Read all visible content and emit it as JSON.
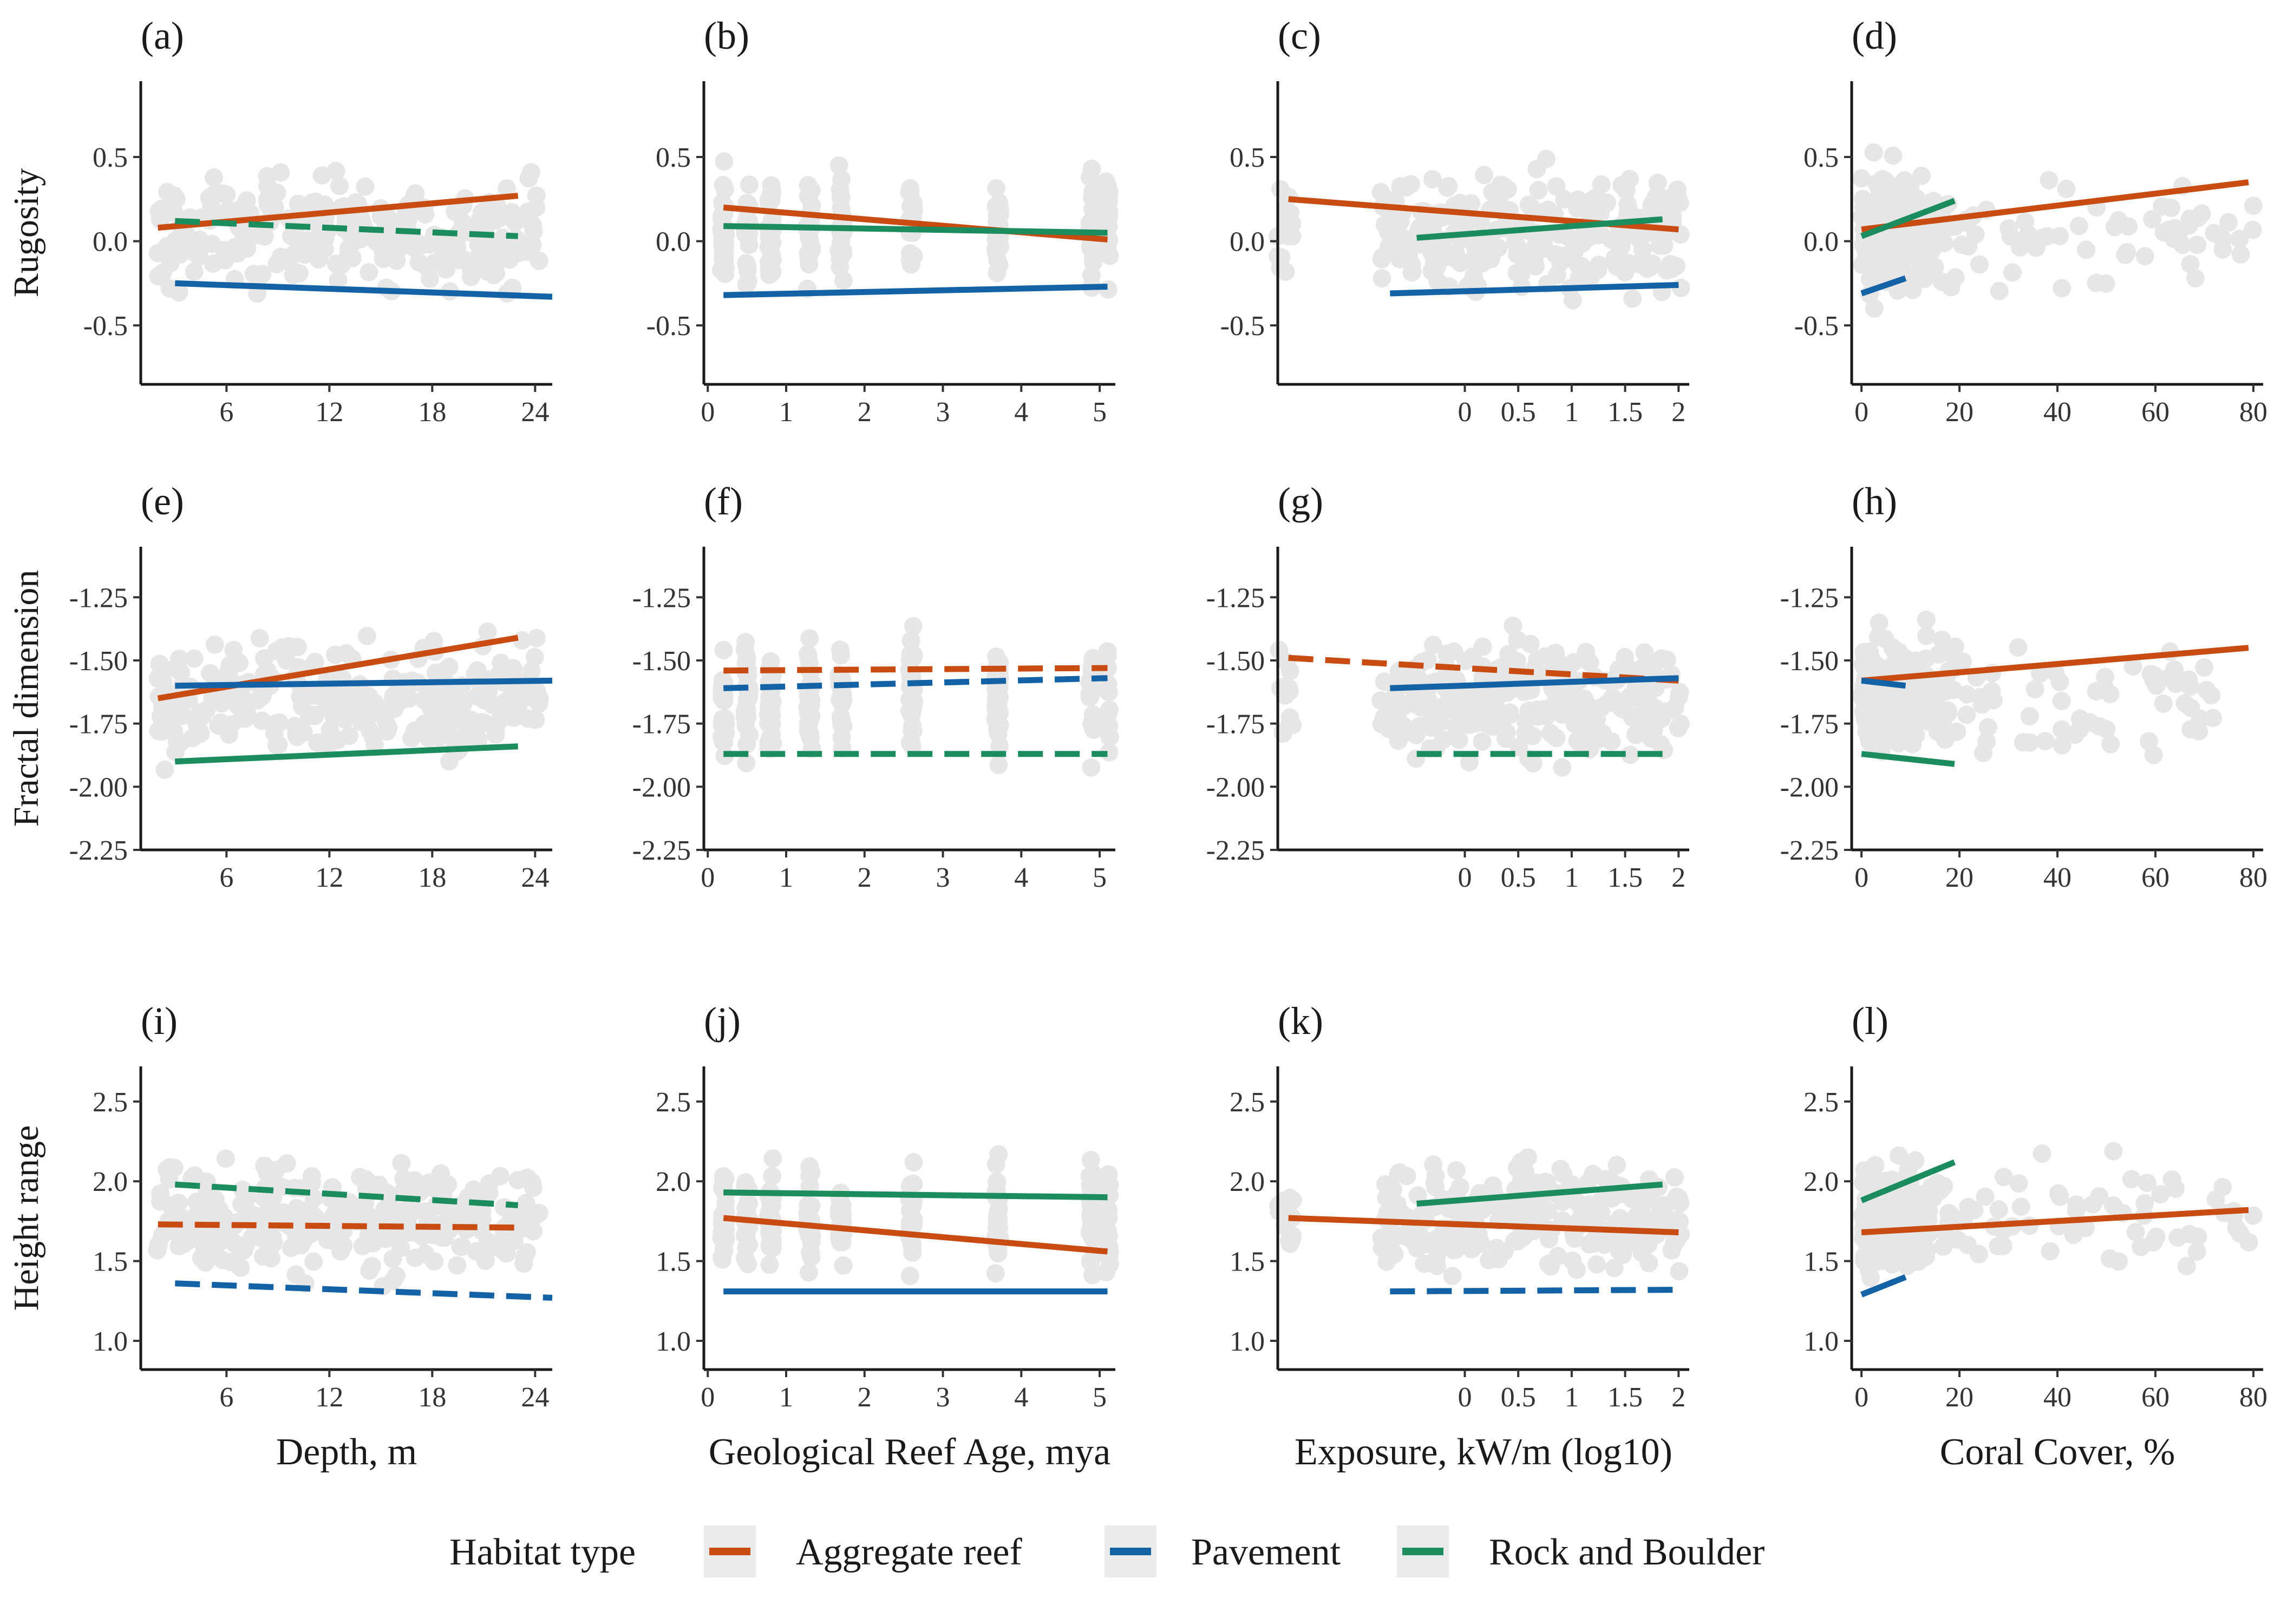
{
  "colors": {
    "Aggregate reef": "#C84B12",
    "Pavement": "#1462A6",
    "Rock and Boulder": "#1B8C5E",
    "points": "#C8C8C8"
  },
  "legend": {
    "title": "Habitat type",
    "entries": [
      "Aggregate reef",
      "Pavement",
      "Rock and Boulder"
    ],
    "position": "bottom"
  },
  "row_ylabels": [
    "Rugosity",
    "Fractal dimension",
    "Height range"
  ],
  "col_xlabels": [
    "Depth, m",
    "Geological Reef Age, mya",
    "Exposure, kW/m (log10)",
    "Coral Cover, %"
  ],
  "chart_data": [
    {
      "panel": "(a)",
      "type": "scatter",
      "xlabel": "",
      "ylabel": "Rugosity",
      "xlim": [
        1,
        25
      ],
      "xticks": [
        6,
        12,
        18,
        24
      ],
      "ylim": [
        -0.85,
        0.95
      ],
      "yticks": [
        0.5,
        0,
        -0.5
      ],
      "yticklabels": [
        "0.5",
        "0.0",
        "-0.5"
      ],
      "series": [
        {
          "name": "Aggregate reef",
          "x": [
            2,
            23
          ],
          "y": [
            0.08,
            0.27
          ],
          "dashed": false
        },
        {
          "name": "Pavement",
          "x": [
            3,
            25
          ],
          "y": [
            -0.25,
            -0.33
          ],
          "dashed": false
        },
        {
          "name": "Rock and Boulder",
          "x": [
            3,
            23
          ],
          "y": [
            0.12,
            0.03
          ],
          "dashed": true
        }
      ]
    },
    {
      "panel": "(b)",
      "type": "scatter",
      "xlabel": "",
      "ylabel": "",
      "xlim": [
        -0.05,
        5.2
      ],
      "xticks": [
        0,
        1,
        2,
        3,
        4,
        5
      ],
      "ylim": [
        -0.85,
        0.95
      ],
      "yticks": [
        0.5,
        0,
        -0.5
      ],
      "yticklabels": [
        "0.5",
        "0.0",
        "-0.5"
      ],
      "series": [
        {
          "name": "Aggregate reef",
          "x": [
            0.2,
            5.1
          ],
          "y": [
            0.2,
            0.01
          ],
          "dashed": false
        },
        {
          "name": "Pavement",
          "x": [
            0.2,
            5.1
          ],
          "y": [
            -0.32,
            -0.27
          ],
          "dashed": false
        },
        {
          "name": "Rock and Boulder",
          "x": [
            0.2,
            5.1
          ],
          "y": [
            0.09,
            0.05
          ],
          "dashed": false
        }
      ]
    },
    {
      "panel": "(c)",
      "type": "scatter",
      "xlabel": "",
      "ylabel": "",
      "xlim": [
        -1.75,
        2.1
      ],
      "xticks": [
        0,
        0.5,
        1,
        1.5,
        2
      ],
      "xticklabels": [
        "0",
        "0.5",
        "1",
        "1.5",
        "2"
      ],
      "ylim": [
        -0.85,
        0.95
      ],
      "yticks": [
        0.5,
        0,
        -0.5
      ],
      "yticklabels": [
        "0.5",
        "0.0",
        "-0.5"
      ],
      "series": [
        {
          "name": "Aggregate reef",
          "x": [
            -1.65,
            2
          ],
          "y": [
            0.25,
            0.07
          ],
          "dashed": false
        },
        {
          "name": "Pavement",
          "x": [
            -0.7,
            2
          ],
          "y": [
            -0.31,
            -0.26
          ],
          "dashed": false
        },
        {
          "name": "Rock and Boulder",
          "x": [
            -0.45,
            1.85
          ],
          "y": [
            0.02,
            0.13
          ],
          "dashed": false
        }
      ]
    },
    {
      "panel": "(d)",
      "type": "scatter",
      "xlabel": "",
      "ylabel": "",
      "xlim": [
        -2,
        82
      ],
      "xticks": [
        0,
        20,
        40,
        60,
        80
      ],
      "ylim": [
        -0.85,
        0.95
      ],
      "yticks": [
        0.5,
        0,
        -0.5
      ],
      "yticklabels": [
        "0.5",
        "0.0",
        "-0.5"
      ],
      "series": [
        {
          "name": "Aggregate reef",
          "x": [
            0,
            79
          ],
          "y": [
            0.07,
            0.35
          ],
          "dashed": false
        },
        {
          "name": "Pavement",
          "x": [
            0,
            9
          ],
          "y": [
            -0.31,
            -0.22
          ],
          "dashed": false
        },
        {
          "name": "Rock and Boulder",
          "x": [
            0,
            19
          ],
          "y": [
            0.03,
            0.24
          ],
          "dashed": false
        }
      ]
    },
    {
      "panel": "(e)",
      "type": "scatter",
      "xlabel": "",
      "ylabel": "Fractal dimension",
      "xlim": [
        1,
        25
      ],
      "xticks": [
        6,
        12,
        18,
        24
      ],
      "ylim": [
        -2.25,
        -1.05
      ],
      "yticks": [
        -1.25,
        -1.5,
        -1.75,
        -2,
        -2.25
      ],
      "yticklabels": [
        "-1.25",
        "-1.50",
        "-1.75",
        "-2.00",
        "-2.25"
      ],
      "series": [
        {
          "name": "Aggregate reef",
          "x": [
            2,
            23
          ],
          "y": [
            -1.65,
            -1.41
          ],
          "dashed": false
        },
        {
          "name": "Pavement",
          "x": [
            3,
            25
          ],
          "y": [
            -1.6,
            -1.58
          ],
          "dashed": false
        },
        {
          "name": "Rock and Boulder",
          "x": [
            3,
            23
          ],
          "y": [
            -1.9,
            -1.84
          ],
          "dashed": false
        }
      ]
    },
    {
      "panel": "(f)",
      "type": "scatter",
      "xlabel": "",
      "ylabel": "",
      "xlim": [
        -0.05,
        5.2
      ],
      "xticks": [
        0,
        1,
        2,
        3,
        4,
        5
      ],
      "ylim": [
        -2.25,
        -1.05
      ],
      "yticks": [
        -1.25,
        -1.5,
        -1.75,
        -2,
        -2.25
      ],
      "yticklabels": [
        "-1.25",
        "-1.50",
        "-1.75",
        "-2.00",
        "-2.25"
      ],
      "series": [
        {
          "name": "Aggregate reef",
          "x": [
            0.2,
            5.1
          ],
          "y": [
            -1.54,
            -1.53
          ],
          "dashed": true
        },
        {
          "name": "Pavement",
          "x": [
            0.2,
            5.1
          ],
          "y": [
            -1.61,
            -1.57
          ],
          "dashed": true
        },
        {
          "name": "Rock and Boulder",
          "x": [
            0.2,
            5.1
          ],
          "y": [
            -1.87,
            -1.87
          ],
          "dashed": true
        }
      ]
    },
    {
      "panel": "(g)",
      "type": "scatter",
      "xlabel": "",
      "ylabel": "",
      "xlim": [
        -1.75,
        2.1
      ],
      "xticks": [
        0,
        0.5,
        1,
        1.5,
        2
      ],
      "xticklabels": [
        "0",
        "0.5",
        "1",
        "1.5",
        "2"
      ],
      "ylim": [
        -2.25,
        -1.05
      ],
      "yticks": [
        -1.25,
        -1.5,
        -1.75,
        -2,
        -2.25
      ],
      "yticklabels": [
        "-1.25",
        "-1.50",
        "-1.75",
        "-2.00",
        "-2.25"
      ],
      "series": [
        {
          "name": "Aggregate reef",
          "x": [
            -1.65,
            2
          ],
          "y": [
            -1.49,
            -1.58
          ],
          "dashed": true
        },
        {
          "name": "Pavement",
          "x": [
            -0.7,
            2
          ],
          "y": [
            -1.61,
            -1.57
          ],
          "dashed": false
        },
        {
          "name": "Rock and Boulder",
          "x": [
            -0.45,
            1.85
          ],
          "y": [
            -1.87,
            -1.87
          ],
          "dashed": true
        }
      ]
    },
    {
      "panel": "(h)",
      "type": "scatter",
      "xlabel": "",
      "ylabel": "",
      "xlim": [
        -2,
        82
      ],
      "xticks": [
        0,
        20,
        40,
        60,
        80
      ],
      "ylim": [
        -2.25,
        -1.05
      ],
      "yticks": [
        -1.25,
        -1.5,
        -1.75,
        -2,
        -2.25
      ],
      "yticklabels": [
        "-1.25",
        "-1.50",
        "-1.75",
        "-2.00",
        "-2.25"
      ],
      "series": [
        {
          "name": "Aggregate reef",
          "x": [
            0,
            79
          ],
          "y": [
            -1.58,
            -1.45
          ],
          "dashed": false
        },
        {
          "name": "Pavement",
          "x": [
            0,
            9
          ],
          "y": [
            -1.58,
            -1.6
          ],
          "dashed": false
        },
        {
          "name": "Rock and Boulder",
          "x": [
            0,
            19
          ],
          "y": [
            -1.87,
            -1.91
          ],
          "dashed": false
        }
      ]
    },
    {
      "panel": "(i)",
      "type": "scatter",
      "xlabel": "Depth, m",
      "ylabel": "Height range",
      "xlim": [
        1,
        25
      ],
      "xticks": [
        6,
        12,
        18,
        24
      ],
      "ylim": [
        0.82,
        2.72
      ],
      "yticks": [
        2.5,
        2,
        1.5,
        1
      ],
      "yticklabels": [
        "2.5",
        "2.0",
        "1.5",
        "1.0"
      ],
      "series": [
        {
          "name": "Aggregate reef",
          "x": [
            2,
            23
          ],
          "y": [
            1.73,
            1.71
          ],
          "dashed": true
        },
        {
          "name": "Pavement",
          "x": [
            3,
            25
          ],
          "y": [
            1.36,
            1.27
          ],
          "dashed": true
        },
        {
          "name": "Rock and Boulder",
          "x": [
            3,
            23
          ],
          "y": [
            1.98,
            1.85
          ],
          "dashed": true
        }
      ]
    },
    {
      "panel": "(j)",
      "type": "scatter",
      "xlabel": "Geological Reef Age, mya",
      "ylabel": "",
      "xlim": [
        -0.05,
        5.2
      ],
      "xticks": [
        0,
        1,
        2,
        3,
        4,
        5
      ],
      "ylim": [
        0.82,
        2.72
      ],
      "yticks": [
        2.5,
        2,
        1.5,
        1
      ],
      "yticklabels": [
        "2.5",
        "2.0",
        "1.5",
        "1.0"
      ],
      "series": [
        {
          "name": "Aggregate reef",
          "x": [
            0.2,
            5.1
          ],
          "y": [
            1.77,
            1.56
          ],
          "dashed": false
        },
        {
          "name": "Pavement",
          "x": [
            0.2,
            5.1
          ],
          "y": [
            1.31,
            1.31
          ],
          "dashed": false
        },
        {
          "name": "Rock and Boulder",
          "x": [
            0.2,
            5.1
          ],
          "y": [
            1.93,
            1.9
          ],
          "dashed": false
        }
      ]
    },
    {
      "panel": "(k)",
      "type": "scatter",
      "xlabel": "Exposure, kW/m (log10)",
      "ylabel": "",
      "xlim": [
        -1.75,
        2.1
      ],
      "xticks": [
        0,
        0.5,
        1,
        1.5,
        2
      ],
      "xticklabels": [
        "0",
        "0.5",
        "1",
        "1.5",
        "2"
      ],
      "ylim": [
        0.82,
        2.72
      ],
      "yticks": [
        2.5,
        2,
        1.5,
        1
      ],
      "yticklabels": [
        "2.5",
        "2.0",
        "1.5",
        "1.0"
      ],
      "series": [
        {
          "name": "Aggregate reef",
          "x": [
            -1.65,
            2
          ],
          "y": [
            1.77,
            1.68
          ],
          "dashed": false
        },
        {
          "name": "Pavement",
          "x": [
            -0.7,
            2
          ],
          "y": [
            1.31,
            1.32
          ],
          "dashed": true
        },
        {
          "name": "Rock and Boulder",
          "x": [
            -0.45,
            1.85
          ],
          "y": [
            1.86,
            1.98
          ],
          "dashed": false
        }
      ]
    },
    {
      "panel": "(l)",
      "type": "scatter",
      "xlabel": "Coral Cover, %",
      "ylabel": "",
      "xlim": [
        -2,
        82
      ],
      "xticks": [
        0,
        20,
        40,
        60,
        80
      ],
      "ylim": [
        0.82,
        2.72
      ],
      "yticks": [
        2.5,
        2,
        1.5,
        1
      ],
      "yticklabels": [
        "2.5",
        "2.0",
        "1.5",
        "1.0"
      ],
      "series": [
        {
          "name": "Aggregate reef",
          "x": [
            0,
            79
          ],
          "y": [
            1.68,
            1.82
          ],
          "dashed": false
        },
        {
          "name": "Pavement",
          "x": [
            0,
            9
          ],
          "y": [
            1.29,
            1.4
          ],
          "dashed": false
        },
        {
          "name": "Rock and Boulder",
          "x": [
            0,
            19
          ],
          "y": [
            1.88,
            2.12
          ],
          "dashed": false
        }
      ]
    }
  ]
}
